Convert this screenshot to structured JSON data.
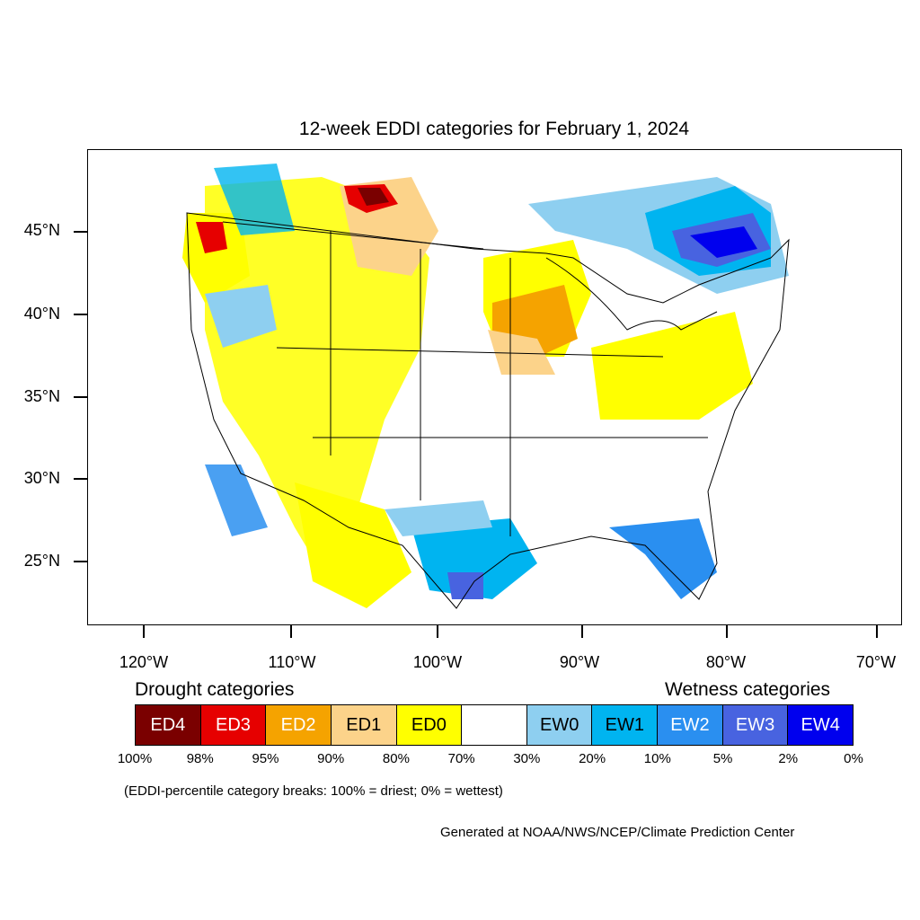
{
  "title": "12-week EDDI categories for February 1, 2024",
  "latitude_labels": [
    "45°N",
    "40°N",
    "35°N",
    "30°N",
    "25°N"
  ],
  "longitude_labels": [
    "120°W",
    "110°W",
    "100°W",
    "90°W",
    "80°W",
    "70°W"
  ],
  "legend": {
    "drought_title": "Drought categories",
    "wetness_title": "Wetness categories",
    "categories": [
      {
        "label": "ED4",
        "color": "#7a0000",
        "text_color": "#ffffff"
      },
      {
        "label": "ED3",
        "color": "#e60000",
        "text_color": "#ffffff"
      },
      {
        "label": "ED2",
        "color": "#f5a300",
        "text_color": "#ffffff"
      },
      {
        "label": "ED1",
        "color": "#fcd38a",
        "text_color": "#000000"
      },
      {
        "label": "ED0",
        "color": "#ffff00",
        "text_color": "#000000"
      },
      {
        "label": "",
        "color": "#ffffff",
        "text_color": "#000000"
      },
      {
        "label": "EW0",
        "color": "#8ecff0",
        "text_color": "#000000"
      },
      {
        "label": "EW1",
        "color": "#00b4f0",
        "text_color": "#000000"
      },
      {
        "label": "EW2",
        "color": "#2a8ff0",
        "text_color": "#ffffff"
      },
      {
        "label": "EW3",
        "color": "#4863e0",
        "text_color": "#ffffff"
      },
      {
        "label": "EW4",
        "color": "#0000ee",
        "text_color": "#ffffff"
      }
    ],
    "breaks": [
      "100%",
      "98%",
      "95%",
      "90%",
      "80%",
      "70%",
      "30%",
      "20%",
      "10%",
      "5%",
      "2%",
      "0%"
    ]
  },
  "note": "(EDDI-percentile category breaks: 100% = driest; 0% = wettest)",
  "credit": "Generated at NOAA/NWS/NCEP/Climate Prediction Center"
}
